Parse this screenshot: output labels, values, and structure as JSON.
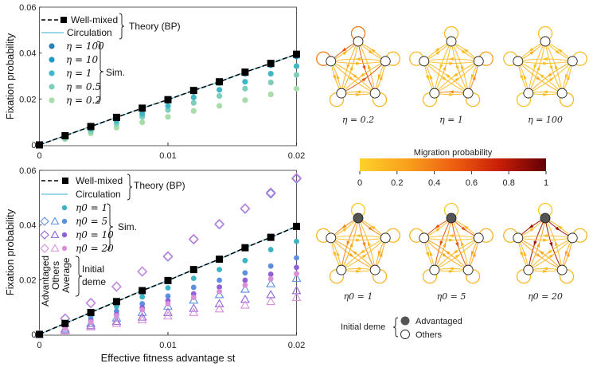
{
  "chart_data": [
    {
      "type": "scatter",
      "panel": "top",
      "xlabel": "",
      "ylabel": "Fixation probability",
      "xlim": [
        0,
        0.02
      ],
      "ylim": [
        0,
        0.06
      ],
      "xticks": [
        "0",
        "0.01",
        "0.02"
      ],
      "yticks": [
        "0",
        "0.02",
        "0.04",
        "0.06"
      ],
      "x": [
        0,
        0.002,
        0.004,
        0.006,
        0.008,
        0.01,
        0.012,
        0.014,
        0.016,
        0.018,
        0.02
      ],
      "theory": {
        "group_label": "Theory (BP)",
        "well_mixed": {
          "name": "Well-mixed",
          "color": "#000000",
          "values": [
            0,
            0.004,
            0.008,
            0.012,
            0.016,
            0.0197,
            0.0237,
            0.0275,
            0.0317,
            0.0355,
            0.0395
          ]
        },
        "circulation": {
          "name": "Circulation",
          "color": "#7ec8e3",
          "values": [
            0,
            0.004,
            0.008,
            0.012,
            0.016,
            0.0197,
            0.0237,
            0.0275,
            0.0317,
            0.0355,
            0.0395
          ]
        }
      },
      "sim_label": "Sim.",
      "series": [
        {
          "name": "η = 100",
          "color": "#2c7fb8",
          "values": [
            0,
            0.004,
            0.008,
            0.012,
            0.0158,
            0.0195,
            0.0235,
            0.0273,
            0.0313,
            0.035,
            0.039
          ]
        },
        {
          "name": "η = 10",
          "color": "#1d9bc4",
          "values": [
            0,
            0.0039,
            0.0078,
            0.0118,
            0.0155,
            0.0192,
            0.0232,
            0.027,
            0.031,
            0.0347,
            0.0385
          ]
        },
        {
          "name": "η = 1",
          "color": "#41b6c4",
          "values": [
            0,
            0.0035,
            0.007,
            0.0105,
            0.0135,
            0.017,
            0.0207,
            0.024,
            0.0275,
            0.031,
            0.0343
          ]
        },
        {
          "name": "η = 0.5",
          "color": "#7fcdbb",
          "values": [
            0,
            0.003,
            0.006,
            0.0092,
            0.0122,
            0.0152,
            0.0183,
            0.0213,
            0.0245,
            0.0272,
            0.0305
          ]
        },
        {
          "name": "η = 0.2",
          "color": "#a8dca8",
          "values": [
            0,
            0.0025,
            0.005,
            0.0075,
            0.0098,
            0.0122,
            0.0148,
            0.017,
            0.0195,
            0.022,
            0.0245
          ]
        }
      ]
    },
    {
      "type": "scatter",
      "panel": "bottom",
      "xlabel": "Effective fitness advantage st",
      "ylabel": "Fixation probability",
      "xlim": [
        0,
        0.02
      ],
      "ylim": [
        0,
        0.06
      ],
      "xticks": [
        "0",
        "0.01",
        "0.02"
      ],
      "yticks": [
        "0",
        "0.02",
        "0.04",
        "0.06"
      ],
      "x": [
        0,
        0.002,
        0.004,
        0.006,
        0.008,
        0.01,
        0.012,
        0.014,
        0.016,
        0.018,
        0.02
      ],
      "theory": {
        "group_label": "Theory (BP)",
        "well_mixed": {
          "name": "Well-mixed",
          "color": "#000000",
          "values": [
            0,
            0.004,
            0.008,
            0.012,
            0.016,
            0.0197,
            0.0237,
            0.0275,
            0.0317,
            0.0355,
            0.0395
          ]
        },
        "circulation": {
          "name": "Circulation",
          "color": "#7ec8e3",
          "values": [
            0,
            0.004,
            0.008,
            0.012,
            0.016,
            0.0197,
            0.0237,
            0.0275,
            0.0317,
            0.0355,
            0.0395
          ]
        }
      },
      "sim_label": "Sim.",
      "initial_deme_label": [
        "Initial",
        "deme"
      ],
      "column_labels": [
        "Advantaged",
        "Others",
        "Average"
      ],
      "series": [
        {
          "name": "η0 = 1",
          "color": "#3bb3c3",
          "average": [
            0,
            0.0034,
            0.0068,
            0.0102,
            0.0137,
            0.017,
            0.0205,
            0.0237,
            0.027,
            0.031,
            0.034
          ]
        },
        {
          "name": "η0 = 5",
          "color": "#5b8fe0",
          "advantaged": [
            0,
            0.0057,
            0.0114,
            0.0174,
            0.0229,
            0.0284,
            0.0347,
            0.0402,
            0.0459,
            0.0515,
            0.0569
          ],
          "others": [
            0,
            0.002,
            0.004,
            0.006,
            0.008,
            0.0103,
            0.0125,
            0.0145,
            0.0165,
            0.0185,
            0.0205
          ],
          "average": [
            0,
            0.0028,
            0.0057,
            0.0085,
            0.0112,
            0.014,
            0.0172,
            0.0198,
            0.0225,
            0.025,
            0.028
          ]
        },
        {
          "name": "η0 = 10",
          "color": "#8e62d6",
          "advantaged": [
            0,
            0.0058,
            0.0115,
            0.0175,
            0.023,
            0.0286,
            0.0348,
            0.0404,
            0.0461,
            0.0518,
            0.0571
          ],
          "others": [
            0,
            0.0016,
            0.0032,
            0.0047,
            0.0063,
            0.008,
            0.0095,
            0.0112,
            0.0128,
            0.0145,
            0.016
          ],
          "average": [
            0,
            0.0025,
            0.0049,
            0.0073,
            0.0098,
            0.0123,
            0.0148,
            0.0173,
            0.0198,
            0.022,
            0.0245
          ]
        },
        {
          "name": "η0 = 20",
          "color": "#d990d8",
          "advantaged": [
            0,
            0.0059,
            0.0116,
            0.0176,
            0.0231,
            0.0287,
            0.035,
            0.0405,
            0.0462,
            0.052,
            0.0573
          ],
          "others": [
            0,
            0.0013,
            0.0027,
            0.004,
            0.0053,
            0.0067,
            0.008,
            0.0093,
            0.0107,
            0.012,
            0.0135
          ],
          "average": [
            0,
            0.0022,
            0.0045,
            0.0068,
            0.009,
            0.0112,
            0.0135,
            0.0157,
            0.018,
            0.0203,
            0.0222
          ]
        }
      ]
    }
  ],
  "colorbar": {
    "title": "Migration probability",
    "ticks": [
      "0",
      "0.2",
      "0.4",
      "0.6",
      "0.8",
      "1"
    ],
    "colors": [
      "#fcd22a",
      "#f9a11d",
      "#ee6010",
      "#c81e07",
      "#620005"
    ]
  },
  "networks_top": [
    {
      "label": "η = 0.2",
      "heterogeneity": 0.9
    },
    {
      "label": "η = 1",
      "heterogeneity": 0.5
    },
    {
      "label": "η = 100",
      "heterogeneity": 0.2
    }
  ],
  "networks_bottom": [
    {
      "label": "η0 = 1",
      "advantaged_strength": 0.35
    },
    {
      "label": "η0 = 5",
      "advantaged_strength": 0.55
    },
    {
      "label": "η0 = 20",
      "advantaged_strength": 0.85
    }
  ],
  "node_legend": {
    "title": "Initial deme",
    "advantaged": "Advantaged",
    "others": "Others",
    "advantaged_color": "#555555"
  }
}
